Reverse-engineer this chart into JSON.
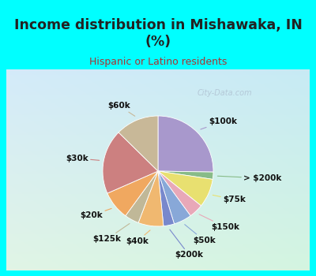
{
  "title": "Income distribution in Mishawaka, IN\n(%)",
  "subtitle": "Hispanic or Latino residents",
  "labels": [
    "$100k",
    "> $200k",
    "$75k",
    "$150k",
    "$50k",
    "$200k",
    "$40k",
    "$125k",
    "$20k",
    "$30k",
    "$60k"
  ],
  "values": [
    24,
    2,
    8,
    4,
    5,
    3,
    7,
    4,
    8,
    18,
    12
  ],
  "colors": [
    "#a898cc",
    "#88bb88",
    "#e8e070",
    "#e8a8b8",
    "#88a8d8",
    "#7888cc",
    "#f0b870",
    "#c0b898",
    "#f0a860",
    "#cc8080",
    "#c8b898"
  ],
  "background_top": "#00ffff",
  "watermark": "City-Data.com",
  "title_color": "#222222",
  "subtitle_color": "#aa3333",
  "grad_colors": [
    "#c8e8d0",
    "#d8eee8",
    "#e8f4f0",
    "#d0e8f0",
    "#c8e0ee"
  ],
  "label_fontsize": 7.5,
  "title_fontsize": 12.5
}
